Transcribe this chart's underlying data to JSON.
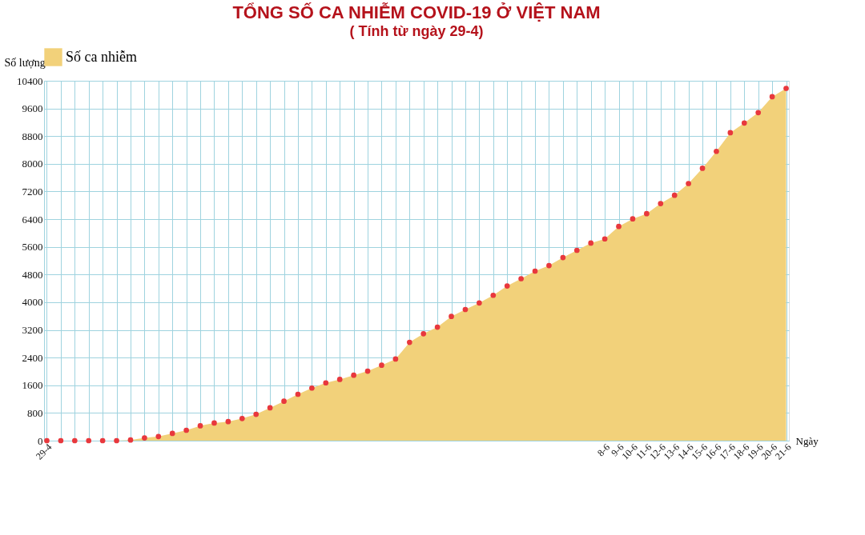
{
  "chart_data": {
    "type": "area",
    "title": "TỔNG SỐ CA NHIỄM COVID-19 Ở VIỆT NAM",
    "subtitle": "( Tính từ ngày 29-4)",
    "xlabel": "Ngày",
    "ylabel": "Số lượng",
    "categories": [
      "29-4",
      null,
      null,
      null,
      null,
      null,
      null,
      null,
      null,
      null,
      null,
      null,
      null,
      null,
      null,
      null,
      null,
      null,
      null,
      null,
      null,
      null,
      null,
      null,
      null,
      null,
      null,
      null,
      null,
      null,
      null,
      null,
      null,
      null,
      null,
      null,
      null,
      null,
      null,
      null,
      "8-6",
      "9-6",
      "10-6",
      "11-6",
      "12-6",
      "13-6",
      "14-6",
      "15-6",
      "16-6",
      "17-6",
      "18-6",
      "19-6",
      "20-6",
      "21-6"
    ],
    "series": [
      {
        "name": "Số ca nhiễm",
        "color": "#f2d17a",
        "values": [
          0,
          0,
          0,
          0,
          0,
          0,
          20,
          80,
          120,
          210,
          300,
          430,
          510,
          550,
          640,
          760,
          950,
          1140,
          1340,
          1520,
          1670,
          1770,
          1890,
          2010,
          2180,
          2360,
          2840,
          3090,
          3280,
          3590,
          3790,
          3980,
          4200,
          4470,
          4680,
          4900,
          5060,
          5290,
          5500,
          5710,
          5830,
          6190,
          6410,
          6560,
          6850,
          7090,
          7430,
          7870,
          8360,
          8900,
          9180,
          9480,
          9940,
          10180
        ]
      }
    ],
    "ylim": [
      0,
      10400
    ],
    "yticks": [
      0,
      800,
      1600,
      2400,
      3200,
      4000,
      4800,
      5600,
      6400,
      7200,
      8000,
      8800,
      9600,
      10400
    ],
    "grid": true,
    "legend": "top",
    "marker": "circle"
  }
}
